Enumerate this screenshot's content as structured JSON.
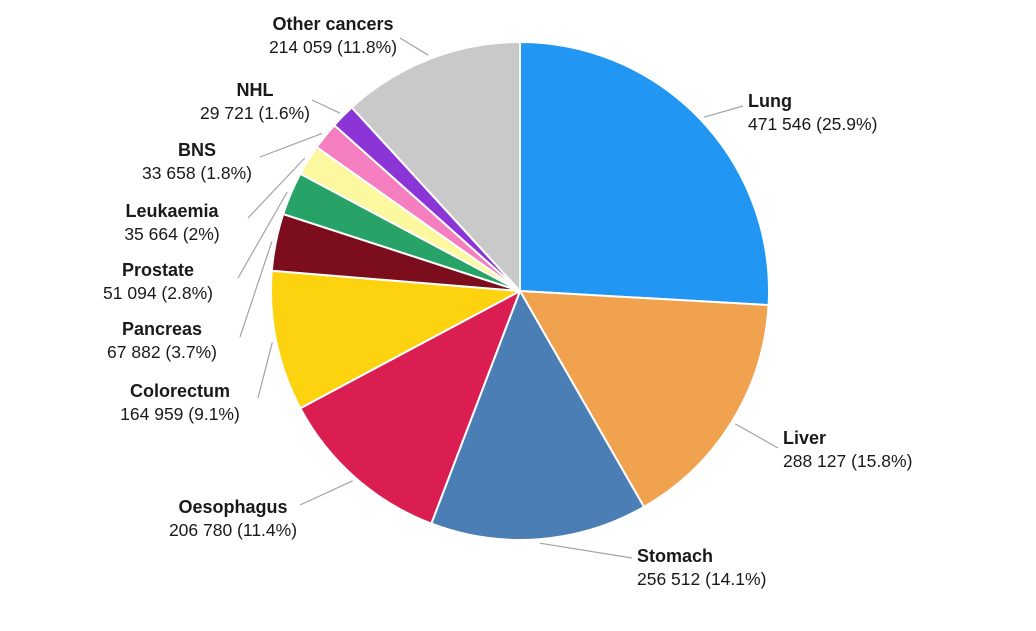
{
  "chart_data": {
    "type": "pie",
    "title": "",
    "direction": "clockwise",
    "start_angle_deg": 0,
    "slices": [
      {
        "label": "Lung",
        "value": 471546,
        "pct": 25.9,
        "display": "471 546 (25.9%)",
        "color": "#2196F3"
      },
      {
        "label": "Liver",
        "value": 288127,
        "pct": 15.8,
        "display": "288 127 (15.8%)",
        "color": "#F0A24E"
      },
      {
        "label": "Stomach",
        "value": 256512,
        "pct": 14.1,
        "display": "256 512 (14.1%)",
        "color": "#4A7EB5"
      },
      {
        "label": "Oesophagus",
        "value": 206780,
        "pct": 11.4,
        "display": "206 780 (11.4%)",
        "color": "#DA1E51"
      },
      {
        "label": "Colorectum",
        "value": 164959,
        "pct": 9.1,
        "display": "164 959 (9.1%)",
        "color": "#FDD20E"
      },
      {
        "label": "Pancreas",
        "value": 67882,
        "pct": 3.7,
        "display": "67 882 (3.7%)",
        "color": "#7B0D1C"
      },
      {
        "label": "Prostate",
        "value": 51094,
        "pct": 2.8,
        "display": "51 094 (2.8%)",
        "color": "#27A368"
      },
      {
        "label": "Leukaemia",
        "value": 35664,
        "pct": 2,
        "display": "35 664 (2%)",
        "color": "#FBF8A0"
      },
      {
        "label": "BNS",
        "value": 33658,
        "pct": 1.8,
        "display": "33 658 (1.8%)",
        "color": "#F57EC0"
      },
      {
        "label": "NHL",
        "value": 29721,
        "pct": 1.6,
        "display": "29 721 (1.6%)",
        "color": "#8C35D6"
      },
      {
        "label": "Other cancers",
        "value": 214059,
        "pct": 11.8,
        "display": "214 059 (11.8%)",
        "color": "#C9C9C9"
      }
    ]
  },
  "styles": {
    "background": "#FFFFFF",
    "slice_border_color": "#FFFFFF",
    "leader_line_color": "#A3A3A3",
    "label_color": "#1A1A1A"
  }
}
